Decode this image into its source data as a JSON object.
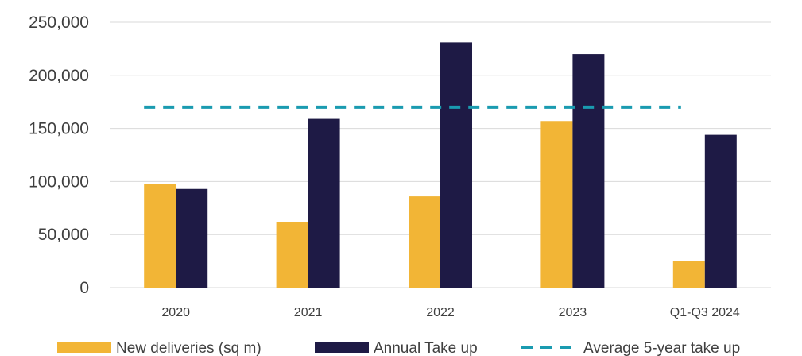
{
  "chart_data": {
    "type": "bar",
    "title": "",
    "xlabel": "",
    "ylabel": "",
    "categories": [
      "2020",
      "2021",
      "2022",
      "2023",
      "Q1-Q3 2024"
    ],
    "ylim": [
      0,
      250000
    ],
    "yticks": [
      0,
      50000,
      100000,
      150000,
      200000,
      250000
    ],
    "ytick_labels": [
      "0",
      "50,000",
      "100,000",
      "150,000",
      "200,000",
      "250,000"
    ],
    "grid": true,
    "legend_position": "bottom",
    "series": [
      {
        "name": "New deliveries (sq m)",
        "type": "bar",
        "color": "#F2B536",
        "values": [
          98000,
          62000,
          86000,
          157000,
          25000
        ]
      },
      {
        "name": "Annual Take up",
        "type": "bar",
        "color": "#1E1A45",
        "values": [
          93000,
          159000,
          231000,
          220000,
          144000
        ]
      },
      {
        "name": "Average 5-year take up",
        "type": "line",
        "style": "dashed",
        "color": "#1A9BB0",
        "values": [
          170000,
          170000,
          170000,
          170000,
          170000
        ]
      }
    ]
  }
}
